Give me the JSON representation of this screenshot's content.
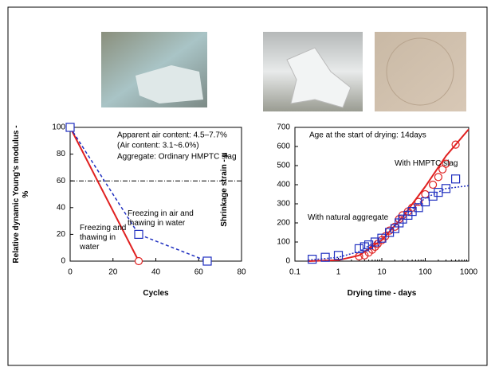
{
  "chart_data": [
    {
      "type": "line",
      "x_label": "Cycles",
      "y_label": "Relative dynamic Young's modulus - %",
      "xlim": [
        0,
        80
      ],
      "xticks": [
        0,
        20,
        40,
        60,
        80
      ],
      "ylim": [
        0,
        100
      ],
      "yticks": [
        0,
        20,
        40,
        60,
        80,
        100
      ],
      "reference_line": 60,
      "annotations": [
        "Apparent air content: 4.5–7.7%",
        "(Air content: 3.1~6.0%)",
        "Aggregate: Ordinary HMPTC slag"
      ],
      "series": [
        {
          "name": "Freezing and thawing in water",
          "color": "#e02020",
          "marker": "circle",
          "dash": false,
          "x": [
            0,
            32
          ],
          "values": [
            100,
            0
          ]
        },
        {
          "name": "Freezing in air and thawing in water",
          "color": "#2030c0",
          "marker": "square",
          "dash": true,
          "x": [
            0,
            32,
            64
          ],
          "values": [
            100,
            20,
            0
          ]
        }
      ]
    },
    {
      "type": "scatter",
      "xlog": true,
      "x_label": "Drying time - days",
      "y_label": "Shrinkage strain - μ",
      "xlim": [
        0.1,
        1000
      ],
      "xticks": [
        0.1,
        1,
        10,
        100,
        1000
      ],
      "ylim": [
        0,
        700
      ],
      "yticks": [
        0,
        100,
        200,
        300,
        400,
        500,
        600,
        700
      ],
      "annotations": [
        "Age at the start of drying: 14days"
      ],
      "series": [
        {
          "name": "With HMPTC slag",
          "color": "#e02020",
          "marker": "circle",
          "fit_dash": false,
          "x": [
            3,
            4,
            5,
            6,
            7,
            8,
            10,
            12,
            15,
            20,
            25,
            30,
            40,
            50,
            70,
            100,
            150,
            200,
            250,
            300,
            500
          ],
          "values": [
            25,
            30,
            45,
            60,
            75,
            90,
            110,
            130,
            160,
            180,
            220,
            240,
            260,
            280,
            310,
            350,
            400,
            440,
            480,
            510,
            610
          ],
          "fit_x": [
            0.2,
            1,
            3,
            10,
            30,
            100,
            300,
            1000
          ],
          "fit_values": [
            0,
            5,
            30,
            110,
            230,
            390,
            550,
            690
          ]
        },
        {
          "name": "With natural aggregate",
          "color": "#2030c0",
          "marker": "square",
          "fit_dash": true,
          "x": [
            0.25,
            0.5,
            1,
            3,
            4,
            5,
            7,
            10,
            15,
            20,
            25,
            30,
            40,
            50,
            70,
            100,
            150,
            200,
            300,
            500
          ],
          "values": [
            10,
            20,
            30,
            65,
            75,
            85,
            100,
            120,
            150,
            170,
            200,
            220,
            240,
            260,
            280,
            310,
            340,
            360,
            380,
            430
          ],
          "fit_x": [
            0.2,
            1,
            3,
            10,
            30,
            100,
            300,
            1000
          ],
          "fit_values": [
            5,
            20,
            50,
            120,
            230,
            330,
            380,
            395
          ]
        }
      ]
    }
  ]
}
